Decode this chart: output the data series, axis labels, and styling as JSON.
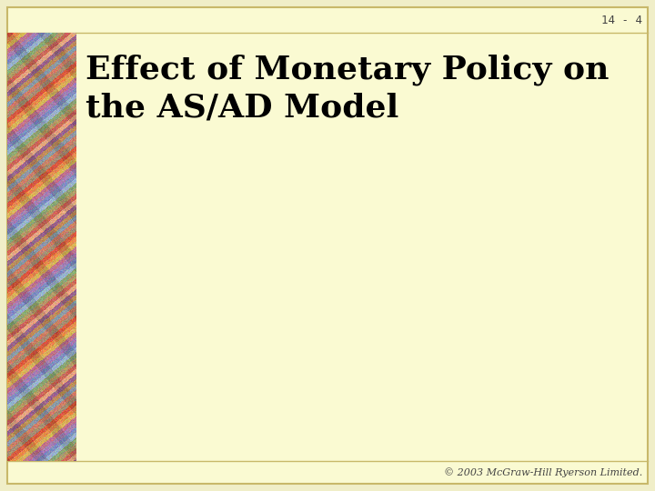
{
  "slide_number": "14 - 4",
  "title_line1": "Effect of Monetary Policy on",
  "title_line2": "the AS/AD Model",
  "copyright": "© 2003 McGraw-Hill Ryerson Limited.",
  "bg_color": "#FAFAD2",
  "outer_bg_color": "#F0EEC8",
  "border_color": "#C8B86A",
  "title_color": "#000000",
  "slide_num_color": "#444444",
  "copyright_color": "#444444",
  "title_fontsize": 26,
  "slide_num_fontsize": 9,
  "copyright_fontsize": 8
}
